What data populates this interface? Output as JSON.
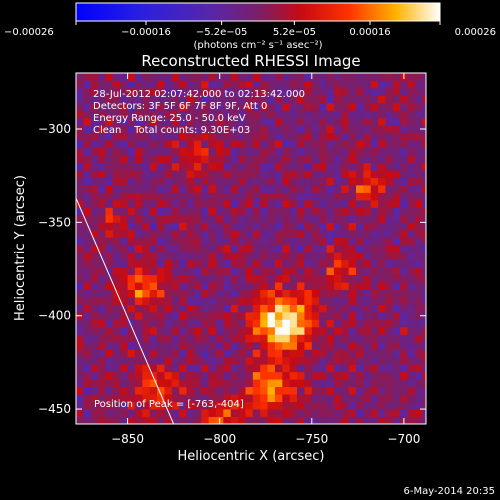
{
  "chart_data": {
    "type": "heatmap",
    "title": "Reconstructed RHESSI Image",
    "xlabel": "Heliocentric X (arcsec)",
    "ylabel": "Heliocentric Y (arcsec)",
    "xlim": [
      -878,
      -688
    ],
    "ylim": [
      -458,
      -270
    ],
    "x_ticks": [
      -850,
      -800,
      -750,
      -700
    ],
    "x_tick_labels": [
      "−850",
      "−800",
      "−750",
      "−700"
    ],
    "y_ticks": [
      -300,
      -350,
      -400,
      -450
    ],
    "y_tick_labels": [
      "−300",
      "−350",
      "−400",
      "−450"
    ],
    "colorbar": {
      "range": [
        -0.00026,
        0.00026
      ],
      "ticks": [
        -0.00026,
        -0.00016,
        -5.2e-05,
        5.2e-05,
        0.00016,
        0.00026
      ],
      "tick_labels": [
        "−0.00026",
        "−0.00016",
        "−5.2e−05",
        "5.2e−05",
        "0.00016",
        "0.00026"
      ],
      "unit_label": "(photons cm⁻² s⁻¹ asec⁻²)"
    },
    "info_lines": [
      "28-Jul-2012 02:07:42.000 to 02:13:42.000",
      "Detectors: 3F 5F 6F 7F 8F 9F, Att 0",
      "Energy Range: 25.0 - 50.0 keV",
      "Clean    Total counts: 9.30E+03"
    ],
    "peak_label": "Position of Peak = [-763,-404]",
    "peak_position": [
      -763,
      -404
    ],
    "limb_line": [
      [
        -878,
        -337
      ],
      [
        -825,
        -458
      ]
    ],
    "sources": [
      {
        "x": -765,
        "y": -403,
        "amplitude": 0.00027,
        "sigma": 11
      },
      {
        "x": -772,
        "y": -438,
        "amplitude": 0.00019,
        "sigma": 9
      },
      {
        "x": -840,
        "y": -385,
        "amplitude": 0.00016,
        "sigma": 8
      },
      {
        "x": -835,
        "y": -440,
        "amplitude": 0.00012,
        "sigma": 9
      },
      {
        "x": -800,
        "y": -455,
        "amplitude": 0.00012,
        "sigma": 8
      },
      {
        "x": -720,
        "y": -330,
        "amplitude": 0.00012,
        "sigma": 7
      },
      {
        "x": -735,
        "y": -375,
        "amplitude": 0.0001,
        "sigma": 7
      },
      {
        "x": -812,
        "y": -315,
        "amplitude": 8e-05,
        "sigma": 8
      },
      {
        "x": -860,
        "y": -350,
        "amplitude": 8e-05,
        "sigma": 6
      }
    ]
  },
  "footer": {
    "date_stamp": "6-May-2014 20:35"
  }
}
